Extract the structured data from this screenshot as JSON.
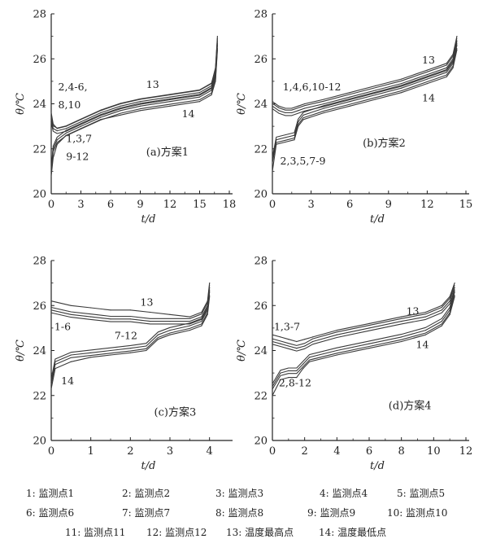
{
  "legend": [
    {
      "row": 0,
      "items": [
        "1: 监测点1",
        "2: 监测点2",
        "3: 监测点3",
        "4: 监测点4",
        "5: 监测点5"
      ]
    },
    {
      "row": 1,
      "items": [
        "6: 监测点6",
        "7: 监测点7",
        "8: 监测点8",
        "9: 监测点9",
        "10: 监测点10"
      ]
    },
    {
      "row": 2,
      "items": [
        "11: 监测点11",
        "12: 监测点12",
        "13: 温度最高点",
        "14: 温度最低点"
      ]
    }
  ],
  "colors": {
    "line": "#3a3a3a",
    "axis": "#222222"
  },
  "chart_data": [
    {
      "id": "a",
      "type": "line",
      "title": "(a)方案1",
      "xlabel": "t/d",
      "ylabel": "θ/℃",
      "xlim": [
        0,
        18
      ],
      "ylim": [
        20,
        28
      ],
      "xticks": [
        0,
        3,
        6,
        9,
        12,
        15,
        18
      ],
      "yticks": [
        20,
        22,
        24,
        26,
        28
      ],
      "series": [
        {
          "name": "13",
          "x": [
            0,
            0.2,
            0.6,
            1.5,
            3,
            5,
            7,
            9,
            12,
            15,
            16.2,
            16.6,
            16.8
          ],
          "y": [
            23.6,
            23.1,
            22.9,
            23.0,
            23.3,
            23.7,
            24.0,
            24.2,
            24.4,
            24.6,
            24.9,
            25.6,
            27.0
          ]
        },
        {
          "name": "2,4-6,8,10",
          "x": [
            0,
            0.2,
            0.6,
            1.5,
            3,
            5,
            7,
            9,
            12,
            15,
            16.2,
            16.6,
            16.8
          ],
          "y": [
            23.3,
            22.9,
            22.8,
            22.9,
            23.2,
            23.6,
            23.9,
            24.1,
            24.3,
            24.5,
            24.8,
            25.4,
            26.8
          ]
        },
        {
          "name": "1,3,7,9-12",
          "x": [
            0,
            0.2,
            0.6,
            1.5,
            3,
            5,
            7,
            9,
            12,
            15,
            16.2,
            16.6,
            16.8
          ],
          "y": [
            21.0,
            22.0,
            22.4,
            22.7,
            23.0,
            23.4,
            23.7,
            23.9,
            24.1,
            24.3,
            24.6,
            25.2,
            26.6
          ]
        },
        {
          "name": "14",
          "x": [
            0,
            0.2,
            0.6,
            1.5,
            3,
            5,
            7,
            9,
            12,
            15,
            16.2,
            16.6,
            16.8
          ],
          "y": [
            20.8,
            21.6,
            22.2,
            22.6,
            22.9,
            23.3,
            23.5,
            23.7,
            23.9,
            24.1,
            24.4,
            25.0,
            26.4
          ]
        }
      ],
      "annotations": [
        {
          "text": "2,4-6,",
          "x": 0.7,
          "y": 24.6
        },
        {
          "text": "8,10",
          "x": 0.7,
          "y": 23.8
        },
        {
          "text": "13",
          "x": 9.6,
          "y": 24.7
        },
        {
          "text": "14",
          "x": 13.2,
          "y": 23.4
        },
        {
          "text": "1,3,7",
          "x": 1.5,
          "y": 22.3
        },
        {
          "text": "9-12",
          "x": 1.5,
          "y": 21.5
        },
        {
          "text": "(a)方案1",
          "x": 9.6,
          "y": 21.7
        }
      ]
    },
    {
      "id": "b",
      "type": "line",
      "title": "(b)方案2",
      "xlabel": "t/d",
      "ylabel": "θ/℃",
      "xlim": [
        0,
        15
      ],
      "ylim": [
        20,
        28
      ],
      "xticks": [
        0,
        3,
        6,
        9,
        12,
        15
      ],
      "yticks": [
        20,
        22,
        24,
        26,
        28
      ],
      "series": [
        {
          "name": "13",
          "x": [
            0,
            0.5,
            1,
            1.5,
            2,
            2.5,
            4,
            6,
            8,
            10,
            12,
            13.5,
            14,
            14.3
          ],
          "y": [
            24.1,
            23.9,
            23.8,
            23.8,
            23.9,
            24.0,
            24.2,
            24.5,
            24.8,
            25.1,
            25.5,
            25.8,
            26.2,
            27.0
          ]
        },
        {
          "name": "1,4,6,10-12",
          "x": [
            0,
            0.5,
            1,
            1.5,
            2,
            2.5,
            4,
            6,
            8,
            10,
            12,
            13.5,
            14,
            14.3
          ],
          "y": [
            23.9,
            23.7,
            23.6,
            23.6,
            23.7,
            23.8,
            24.0,
            24.3,
            24.6,
            24.9,
            25.3,
            25.6,
            26.0,
            26.8
          ]
        },
        {
          "name": "2,3,5,7-9",
          "x": [
            0,
            0.3,
            1,
            1.7,
            2,
            2.4,
            4,
            6,
            8,
            10,
            12,
            13.5,
            14,
            14.3
          ],
          "y": [
            21.5,
            22.4,
            22.5,
            22.6,
            23.2,
            23.5,
            23.8,
            24.1,
            24.4,
            24.7,
            25.1,
            25.4,
            25.8,
            26.6
          ]
        },
        {
          "name": "14",
          "x": [
            0,
            0.3,
            1,
            1.7,
            2,
            2.4,
            4,
            6,
            8,
            10,
            12,
            13.5,
            14,
            14.3
          ],
          "y": [
            21.0,
            22.2,
            22.3,
            22.4,
            23.0,
            23.3,
            23.6,
            23.9,
            24.2,
            24.5,
            24.9,
            25.2,
            25.6,
            26.4
          ]
        }
      ],
      "annotations": [
        {
          "text": "1,4,6,10-12",
          "x": 0.8,
          "y": 24.6
        },
        {
          "text": "13",
          "x": 11.6,
          "y": 25.8
        },
        {
          "text": "14",
          "x": 11.6,
          "y": 24.1
        },
        {
          "text": "2,3,5,7-9",
          "x": 0.6,
          "y": 21.3
        },
        {
          "text": "(b)方案2",
          "x": 7.0,
          "y": 22.1
        }
      ]
    },
    {
      "id": "c",
      "type": "line",
      "title": "(c)方案3",
      "xlabel": "t/d",
      "ylabel": "θ/℃",
      "xlim": [
        0,
        4.5
      ],
      "ylim": [
        20,
        28
      ],
      "xticks": [
        0,
        1,
        2,
        3,
        4
      ],
      "yticks": [
        20,
        22,
        24,
        26,
        28
      ],
      "series": [
        {
          "name": "13",
          "x": [
            0,
            0.5,
            1,
            1.5,
            2,
            2.5,
            3,
            3.5,
            3.8,
            3.95,
            4.0
          ],
          "y": [
            26.2,
            26.0,
            25.9,
            25.8,
            25.8,
            25.7,
            25.6,
            25.5,
            25.7,
            26.2,
            27.0
          ]
        },
        {
          "name": "1-6",
          "x": [
            0,
            0.5,
            1,
            1.5,
            2,
            2.5,
            3,
            3.5,
            3.8,
            3.95,
            4.0
          ],
          "y": [
            25.8,
            25.6,
            25.5,
            25.4,
            25.4,
            25.3,
            25.3,
            25.3,
            25.5,
            26.0,
            26.8
          ]
        },
        {
          "name": "7-12",
          "x": [
            0,
            0.1,
            0.5,
            1,
            1.5,
            2,
            2.4,
            2.7,
            3,
            3.5,
            3.8,
            3.95,
            4.0
          ],
          "y": [
            22.6,
            23.5,
            23.8,
            23.9,
            24.0,
            24.1,
            24.2,
            24.7,
            24.9,
            25.1,
            25.3,
            25.8,
            26.6
          ]
        },
        {
          "name": "14",
          "x": [
            0,
            0.1,
            0.5,
            1,
            1.5,
            2,
            2.4,
            2.7,
            3,
            3.5,
            3.8,
            3.95,
            4.0
          ],
          "y": [
            22.3,
            23.2,
            23.5,
            23.7,
            23.8,
            23.9,
            24.0,
            24.5,
            24.7,
            24.9,
            25.1,
            25.6,
            26.4
          ]
        }
      ],
      "annotations": [
        {
          "text": "13",
          "x": 2.25,
          "y": 26.0
        },
        {
          "text": "1-6",
          "x": 0.08,
          "y": 24.9
        },
        {
          "text": "7-12",
          "x": 1.6,
          "y": 24.5
        },
        {
          "text": "14",
          "x": 0.25,
          "y": 22.5
        },
        {
          "text": "(c)方案3",
          "x": 2.6,
          "y": 21.1
        }
      ]
    },
    {
      "id": "d",
      "type": "line",
      "title": "(d)方案4",
      "xlabel": "t/d",
      "ylabel": "θ/℃",
      "xlim": [
        0,
        12
      ],
      "ylim": [
        20,
        28
      ],
      "xticks": [
        0,
        2,
        4,
        6,
        8,
        10,
        12
      ],
      "yticks": [
        20,
        22,
        24,
        26,
        28
      ],
      "series": [
        {
          "name": "13",
          "x": [
            0,
            0.5,
            1,
            1.5,
            2,
            2.5,
            4,
            6,
            8,
            9.5,
            10.5,
            11,
            11.3
          ],
          "y": [
            24.7,
            24.6,
            24.5,
            24.4,
            24.5,
            24.6,
            24.9,
            25.2,
            25.5,
            25.7,
            26.0,
            26.4,
            27.0
          ]
        },
        {
          "name": "1,3-7",
          "x": [
            0,
            0.5,
            1,
            1.5,
            2,
            2.5,
            4,
            6,
            8,
            9.5,
            10.5,
            11,
            11.3
          ],
          "y": [
            24.4,
            24.3,
            24.2,
            24.1,
            24.2,
            24.4,
            24.7,
            25.0,
            25.3,
            25.5,
            25.8,
            26.2,
            26.8
          ]
        },
        {
          "name": "2,8-12",
          "x": [
            0,
            0.5,
            1,
            1.5,
            1.9,
            2.3,
            4,
            6,
            8,
            9.5,
            10.5,
            11,
            11.3
          ],
          "y": [
            22.4,
            23.0,
            23.1,
            23.1,
            23.4,
            23.7,
            24.0,
            24.3,
            24.6,
            24.9,
            25.3,
            25.8,
            26.6
          ]
        },
        {
          "name": "14",
          "x": [
            0,
            0.5,
            1,
            1.5,
            1.9,
            2.3,
            4,
            6,
            8,
            9.5,
            10.5,
            11,
            11.3
          ],
          "y": [
            22.0,
            22.7,
            22.8,
            22.8,
            23.2,
            23.5,
            23.8,
            24.1,
            24.4,
            24.7,
            25.1,
            25.6,
            26.4
          ]
        }
      ],
      "annotations": [
        {
          "text": "1,3-7",
          "x": 0.1,
          "y": 24.9
        },
        {
          "text": "13",
          "x": 8.3,
          "y": 25.6
        },
        {
          "text": "14",
          "x": 8.9,
          "y": 24.1
        },
        {
          "text": "2,8-12",
          "x": 0.4,
          "y": 22.4
        },
        {
          "text": "(d)方案4",
          "x": 7.2,
          "y": 21.4
        }
      ]
    }
  ]
}
